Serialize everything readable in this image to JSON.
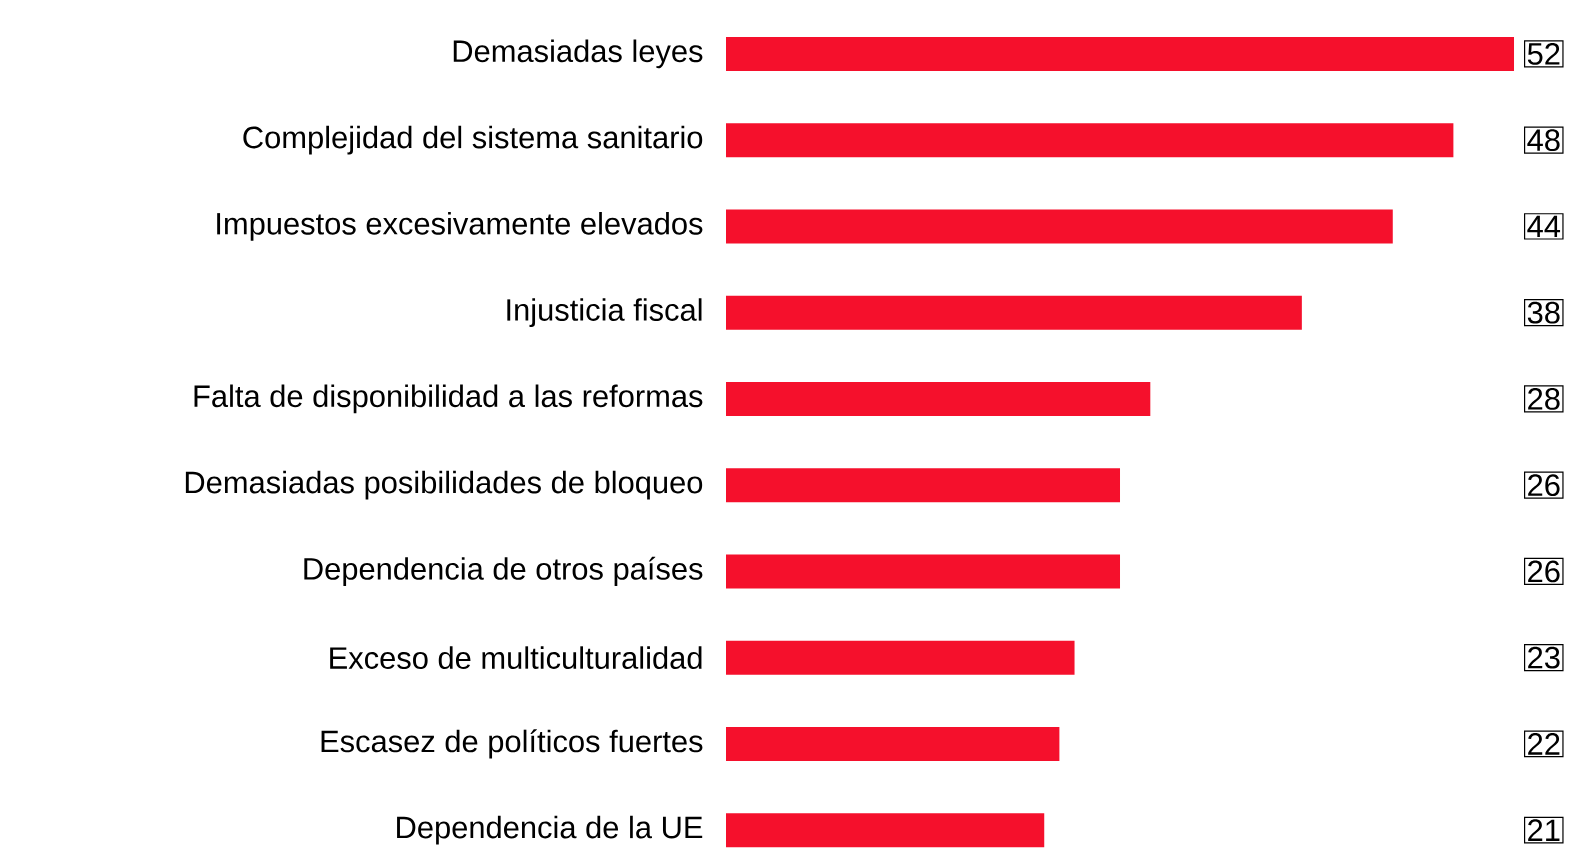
{
  "chart_data": {
    "type": "bar",
    "orientation": "horizontal",
    "data_labels": true,
    "color": "#f5102c",
    "categories": [
      "Demasiadas leyes",
      "Complejidad del sistema sanitario",
      "Impuestos excesivamente elevados",
      "Injusticia fiscal",
      "Falta de disponibilidad a las reformas",
      "Demasiadas posibilidades de bloqueo",
      "Dependencia de otros países",
      "Exceso de multiculturalidad",
      "Escasez de políticos fuertes",
      "Dependencia de la UE"
    ],
    "values": [
      52,
      48,
      44,
      38,
      28,
      26,
      26,
      23,
      22,
      21
    ]
  }
}
